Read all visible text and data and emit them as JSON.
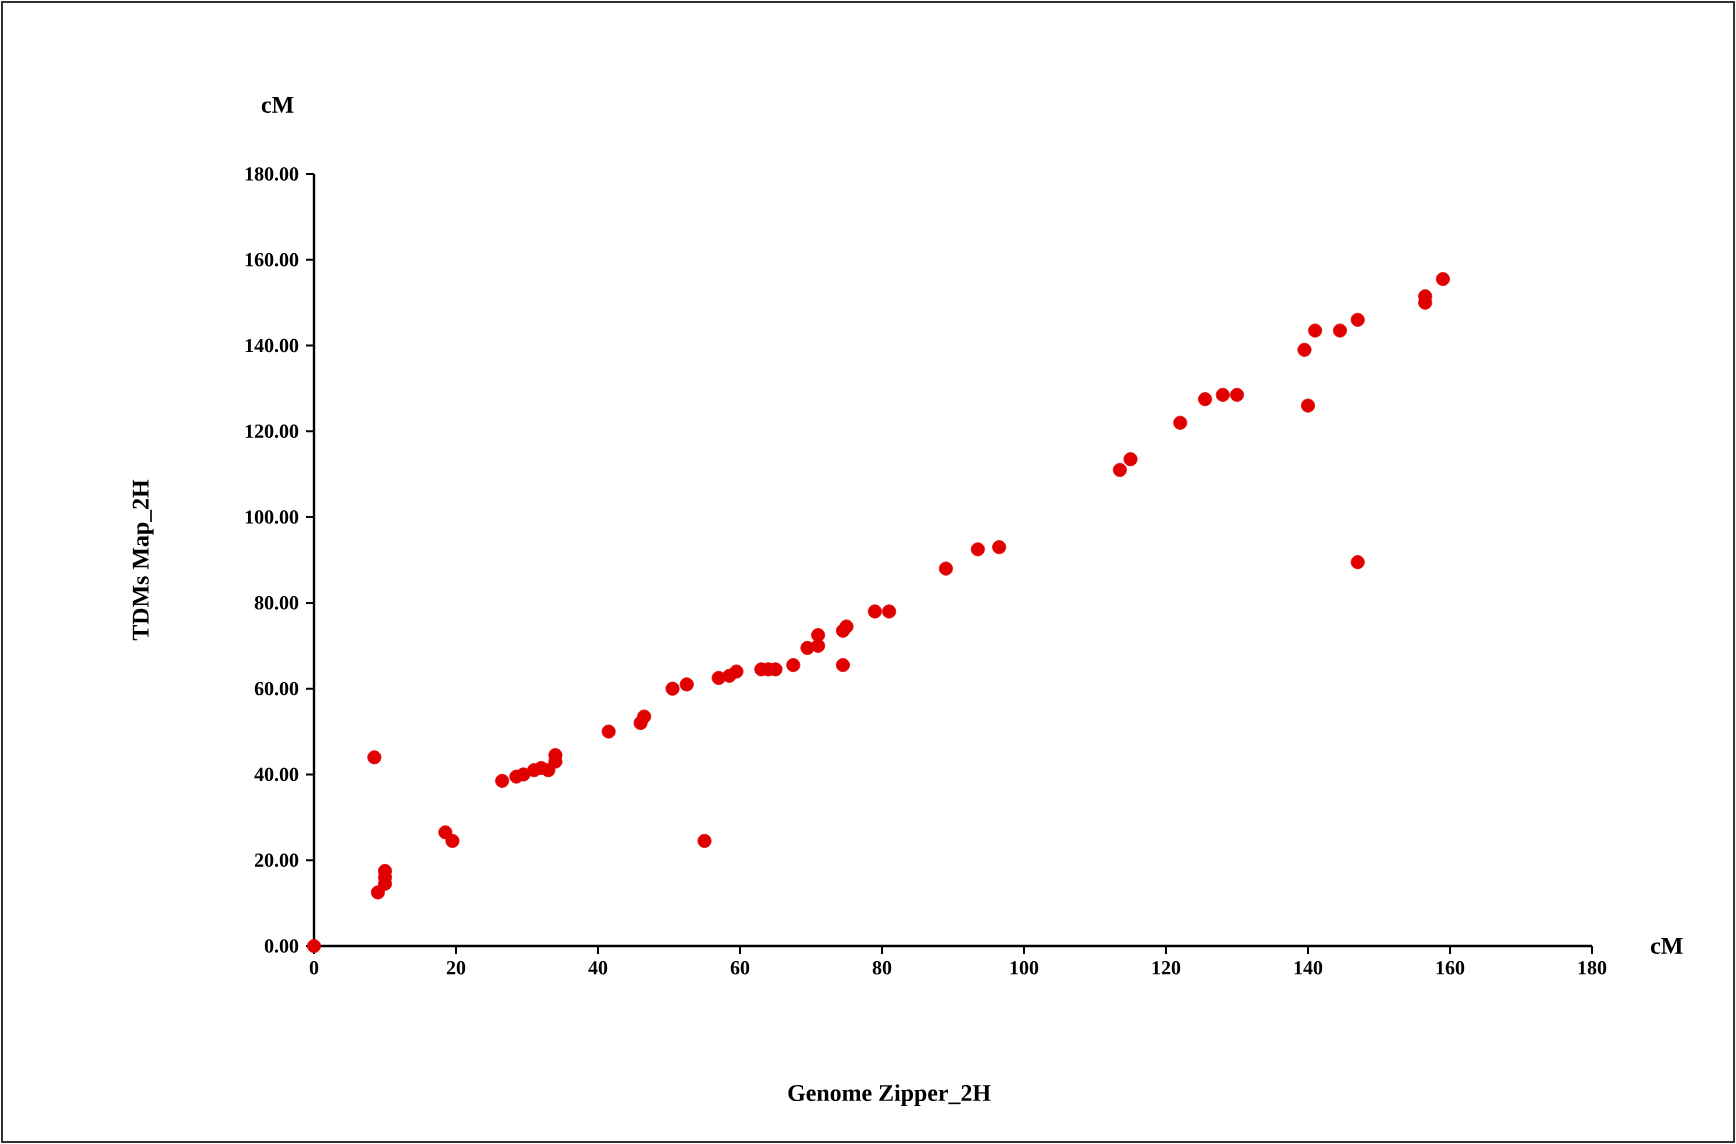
{
  "chart_data": {
    "type": "scatter",
    "xlabel": "Genome Zipper_2H",
    "ylabel": "TDMs Map_2H",
    "annotations": [
      "cM",
      "cM"
    ],
    "x": [
      0,
      8.5,
      9,
      10,
      10,
      10,
      18.5,
      19.5,
      26.5,
      28.5,
      29.5,
      31,
      32,
      33,
      34,
      34,
      41.5,
      46,
      46.5,
      50.5,
      52.5,
      57,
      58.5,
      59.5,
      63,
      64,
      65,
      67.5,
      69.5,
      71,
      71,
      74.5,
      75,
      74.5,
      55,
      79,
      81,
      89,
      93.5,
      96.5,
      113.5,
      115,
      122,
      125.5,
      128,
      130,
      139.5,
      140,
      141,
      144.5,
      147,
      147,
      156.5,
      156.5,
      159
    ],
    "values": [
      0,
      44,
      12.5,
      14.5,
      16,
      17.5,
      26.5,
      24.5,
      38.5,
      39.5,
      40,
      41,
      41.5,
      41,
      43,
      44.5,
      50,
      52,
      53.5,
      60,
      61,
      62.5,
      63,
      64,
      64.5,
      64.5,
      64.5,
      65.5,
      69.5,
      70,
      72.5,
      73.5,
      74.5,
      65.5,
      24.5,
      78,
      78,
      88,
      92.5,
      93,
      111,
      113.5,
      122,
      127.5,
      128.5,
      128.5,
      139,
      126,
      143.5,
      143.5,
      146,
      89.5,
      150,
      151.5,
      155.5
    ],
    "color": "#e00000",
    "marker": "circle",
    "xlim": [
      0,
      180
    ],
    "ylim": [
      0,
      180
    ],
    "xticks": [
      0,
      20,
      40,
      60,
      80,
      100,
      120,
      140,
      160,
      180
    ],
    "yticks": [
      {
        "value": 0,
        "label": "0.00"
      },
      {
        "value": 20,
        "label": "20.00"
      },
      {
        "value": 40,
        "label": "40.00"
      },
      {
        "value": 60,
        "label": "60.00"
      },
      {
        "value": 80,
        "label": "80.00"
      },
      {
        "value": 100,
        "label": "100.00"
      },
      {
        "value": 120,
        "label": "120.00"
      },
      {
        "value": 140,
        "label": "140.00"
      },
      {
        "value": 160,
        "label": "160.00"
      },
      {
        "value": 180,
        "label": "180.00"
      }
    ]
  }
}
